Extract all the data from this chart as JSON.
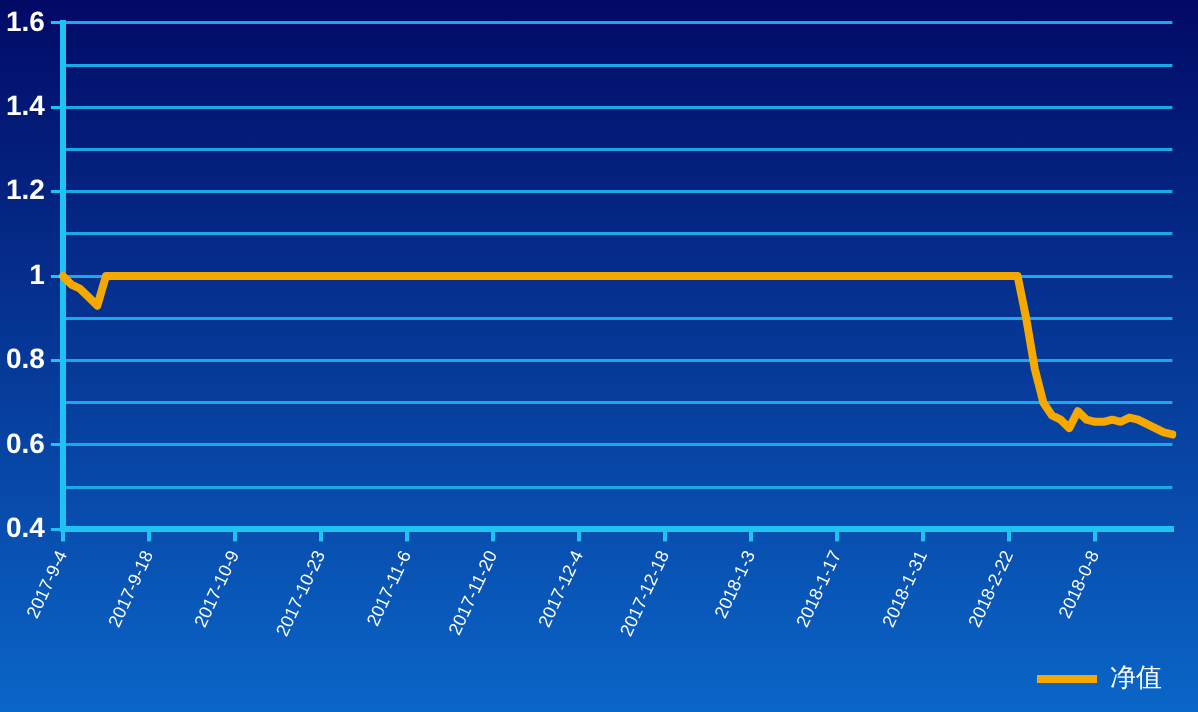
{
  "chart_data": {
    "type": "line",
    "categories": [
      "2017-9-4",
      null,
      null,
      null,
      null,
      null,
      null,
      null,
      null,
      null,
      "2017-9-18",
      null,
      null,
      null,
      null,
      null,
      null,
      null,
      null,
      null,
      "2017-10-9",
      null,
      null,
      null,
      null,
      null,
      null,
      null,
      null,
      null,
      "2017-10-23",
      null,
      null,
      null,
      null,
      null,
      null,
      null,
      null,
      null,
      "2017-11-6",
      null,
      null,
      null,
      null,
      null,
      null,
      null,
      null,
      null,
      "2017-11-20",
      null,
      null,
      null,
      null,
      null,
      null,
      null,
      null,
      null,
      "2017-12-4",
      null,
      null,
      null,
      null,
      null,
      null,
      null,
      null,
      null,
      "2017-12-18",
      null,
      null,
      null,
      null,
      null,
      null,
      null,
      null,
      null,
      "2018-1-3",
      null,
      null,
      null,
      null,
      null,
      null,
      null,
      null,
      null,
      "2018-1-17",
      null,
      null,
      null,
      null,
      null,
      null,
      null,
      null,
      null,
      "2018-1-31",
      null,
      null,
      null,
      null,
      null,
      null,
      null,
      null,
      null,
      "2018-2-22",
      null,
      null,
      null,
      null,
      null,
      null,
      null,
      null,
      null,
      "2018-0-8",
      null,
      null,
      null,
      null,
      null,
      null,
      null,
      null,
      null
    ],
    "series": [
      {
        "name": "净值",
        "color": "#f5a800",
        "values": [
          1,
          0.98,
          0.97,
          0.95,
          0.93,
          1,
          1,
          1,
          1,
          1,
          1,
          1,
          1,
          1,
          1,
          1,
          1,
          1,
          1,
          1,
          1,
          1,
          1,
          1,
          1,
          1,
          1,
          1,
          1,
          1,
          1,
          1,
          1,
          1,
          1,
          1,
          1,
          1,
          1,
          1,
          1,
          1,
          1,
          1,
          1,
          1,
          1,
          1,
          1,
          1,
          1,
          1,
          1,
          1,
          1,
          1,
          1,
          1,
          1,
          1,
          1,
          1,
          1,
          1,
          1,
          1,
          1,
          1,
          1,
          1,
          1,
          1,
          1,
          1,
          1,
          1,
          1,
          1,
          1,
          1,
          1,
          1,
          1,
          1,
          1,
          1,
          1,
          1,
          1,
          1,
          1,
          1,
          1,
          1,
          1,
          1,
          1,
          1,
          1,
          1,
          1,
          1,
          1,
          1,
          1,
          1,
          1,
          1,
          1,
          1,
          1,
          1,
          0.9,
          0.78,
          0.7,
          0.67,
          0.66,
          0.64,
          0.68,
          0.66,
          0.655,
          0.655,
          0.66,
          0.655,
          0.665,
          0.66,
          0.65,
          0.64,
          0.63,
          0.625
        ]
      }
    ],
    "ylim": [
      0.4,
      1.6
    ],
    "yticks": [
      0.4,
      {
        "value": 0.5,
        "label": null
      },
      0.6,
      {
        "value": 0.7,
        "label": null
      },
      0.8,
      {
        "value": 0.9,
        "label": null
      },
      1,
      {
        "value": 1.1,
        "label": null
      },
      1.2,
      {
        "value": 1.3,
        "label": null
      },
      1.4,
      {
        "value": 1.5,
        "label": null
      },
      1.6
    ],
    "grid": "y",
    "legend": "bottom right",
    "marker": "none",
    "line_style": "solid"
  }
}
